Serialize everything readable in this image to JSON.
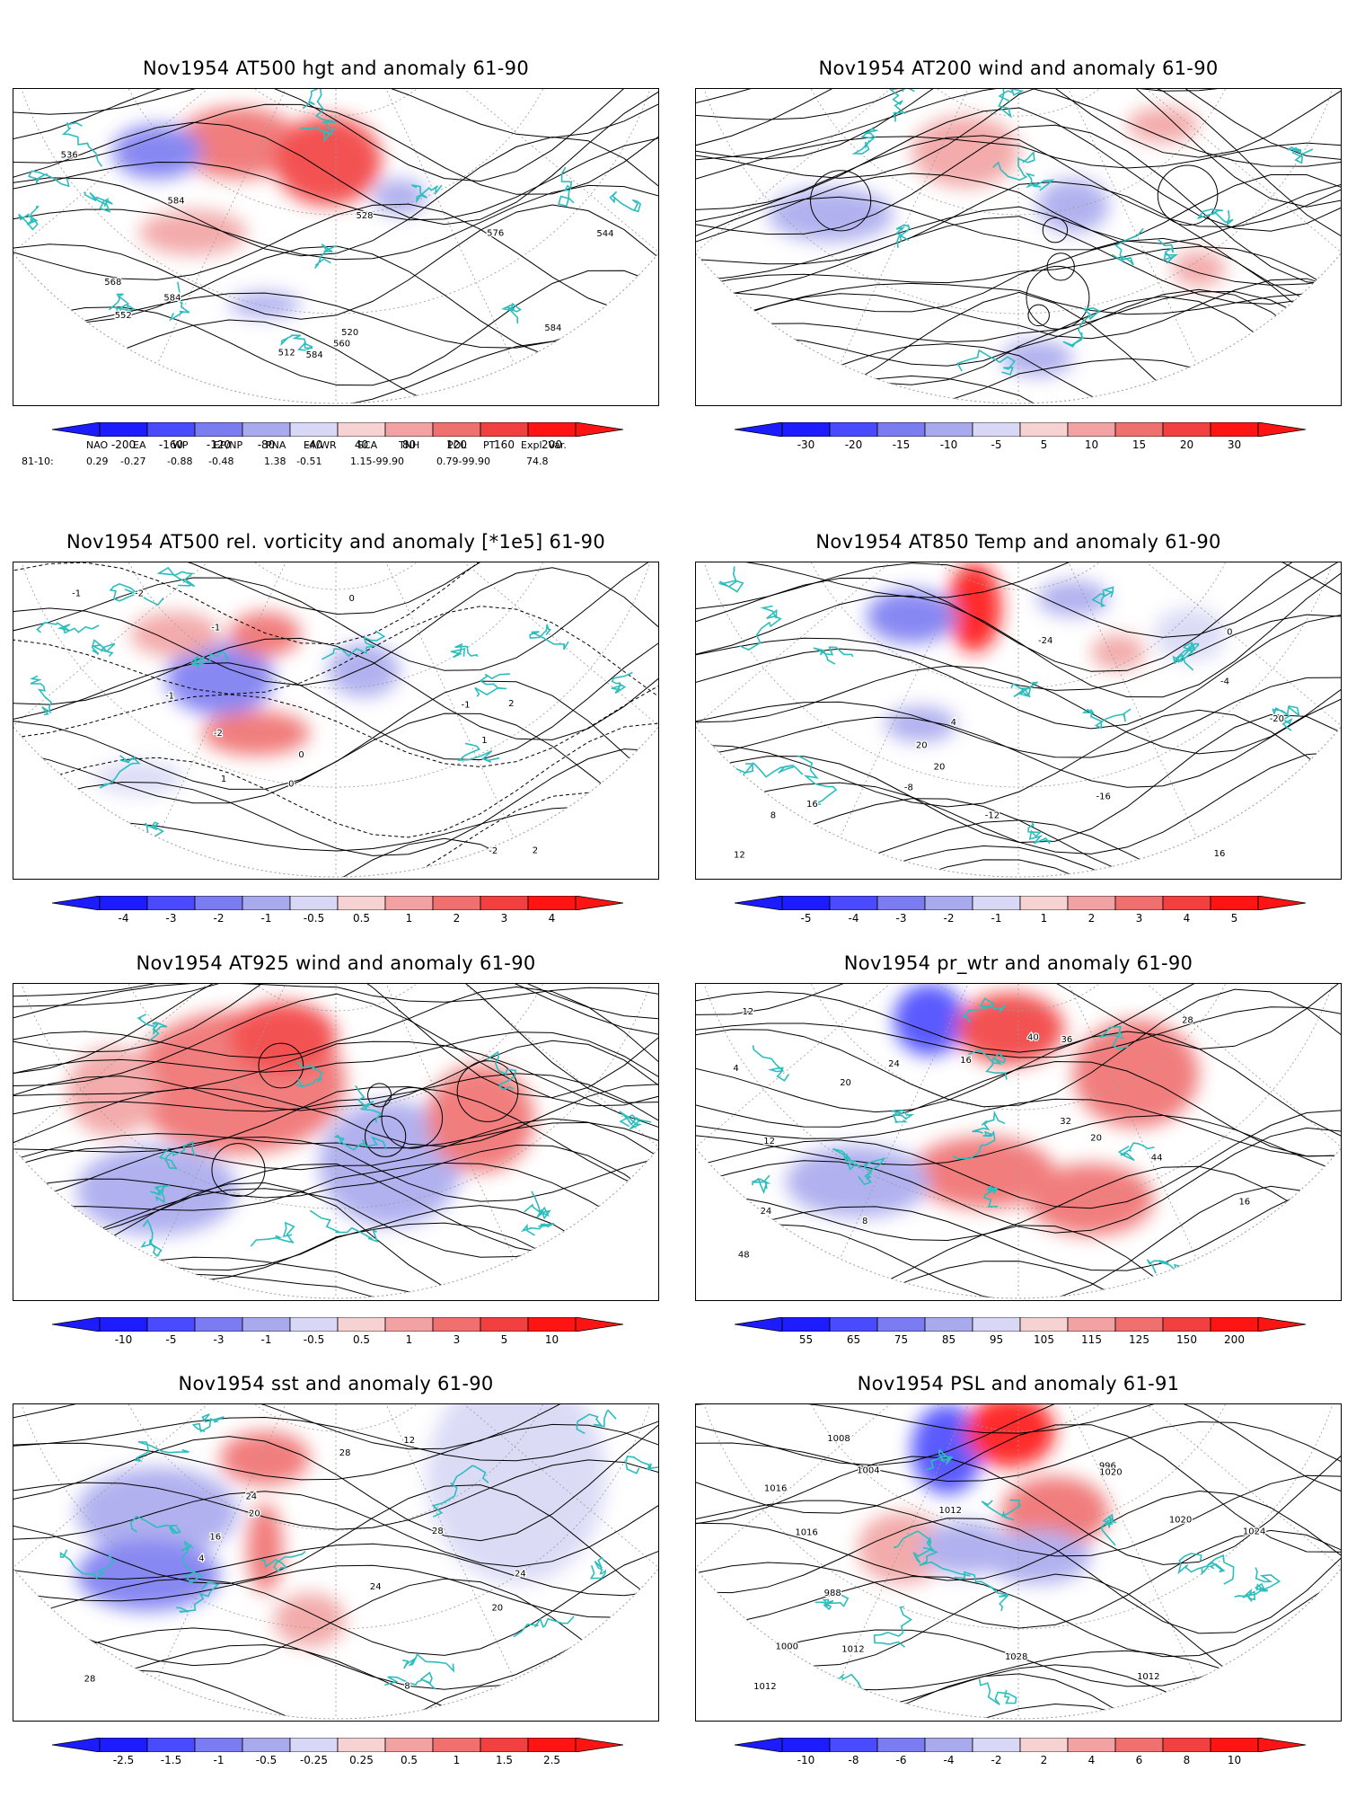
{
  "panels": [
    {
      "title": "Nov1954 AT500 hgt and anomaly 61-90",
      "ticks": [
        "-200",
        "-160",
        "-120",
        "-80",
        "-40",
        "40",
        "80",
        "120",
        "160",
        "200"
      ],
      "labels": [
        "512",
        "520",
        "528",
        "536",
        "544",
        "552",
        "560",
        "568",
        "576",
        "584",
        "584",
        "584",
        "584"
      ],
      "kind": "hgt"
    },
    {
      "title": "Nov1954 AT200 wind and anomaly 61-90",
      "ticks": [
        "-30",
        "-20",
        "-15",
        "-10",
        "-5",
        "5",
        "10",
        "15",
        "20",
        "30"
      ],
      "labels": [],
      "kind": "wind"
    },
    {
      "title": "Nov1954 AT500 rel. vorticity and anomaly [*1e5] 61-90",
      "ticks": [
        "-4",
        "-3",
        "-2",
        "-1",
        "-0.5",
        "0.5",
        "1",
        "2",
        "3",
        "4"
      ],
      "labels": [
        "0",
        "-1",
        "-2",
        "1",
        "2",
        "-1",
        "0",
        "-2",
        "1",
        "-1",
        "2",
        "0",
        "-1",
        "-2"
      ],
      "kind": "vort"
    },
    {
      "title": "Nov1954 AT850 Temp and anomaly 61-90",
      "ticks": [
        "-5",
        "-4",
        "-3",
        "-2",
        "-1",
        "1",
        "2",
        "3",
        "4",
        "5"
      ],
      "labels": [
        "-20",
        "-24",
        "-12",
        "-16",
        "-8",
        "-4",
        "0",
        "4",
        "8",
        "12",
        "16",
        "20",
        "20",
        "16"
      ],
      "kind": "temp"
    },
    {
      "title": "Nov1954 AT925 wind and anomaly 61-90",
      "ticks": [
        "-10",
        "-5",
        "-3",
        "-1",
        "-0.5",
        "0.5",
        "1",
        "3",
        "5",
        "10"
      ],
      "labels": [],
      "kind": "wind"
    },
    {
      "title": "Nov1954 pr_wtr and anomaly 61-90",
      "ticks": [
        "55",
        "65",
        "75",
        "85",
        "95",
        "105",
        "115",
        "125",
        "150",
        "200"
      ],
      "labels": [
        "4",
        "8",
        "12",
        "16",
        "20",
        "24",
        "28",
        "32",
        "36",
        "40",
        "44",
        "48",
        "16",
        "12",
        "20",
        "24"
      ],
      "kind": "prw"
    },
    {
      "title": "Nov1954 sst and anomaly 61-90",
      "ticks": [
        "-2.5",
        "-1.5",
        "-1",
        "-0.5",
        "-0.25",
        "0.25",
        "0.5",
        "1",
        "1.5",
        "2.5"
      ],
      "labels": [
        "28",
        "24",
        "20",
        "16",
        "12",
        "8",
        "4",
        "28",
        "24",
        "20",
        "28",
        "24"
      ],
      "kind": "sst"
    },
    {
      "title": "Nov1954 PSL and anomaly 61-91",
      "ticks": [
        "-10",
        "-8",
        "-6",
        "-4",
        "-2",
        "2",
        "4",
        "6",
        "8",
        "10"
      ],
      "labels": [
        "1012",
        "1024",
        "996",
        "988",
        "1000",
        "1004",
        "1012",
        "1020",
        "1016",
        "1016",
        "1012",
        "1020",
        "1028",
        "1008",
        "1012"
      ],
      "kind": "psl"
    }
  ],
  "indices": {
    "header": [
      "NAO",
      "EA",
      "WP",
      "EP/NP",
      "PNA",
      "EA/WR",
      "SCA",
      "TNH",
      "POL",
      "PT",
      "Expl. Var."
    ],
    "row_label": "81-10:",
    "values": [
      "0.29",
      "-0.27",
      "-0.88",
      "-0.48",
      "1.38",
      "-0.51",
      "1.15-99.90",
      "0.79-99.90",
      "74.8"
    ]
  },
  "colors": {
    "coast": "#2ebdbd",
    "contour": "#000000",
    "grid": "#9a9a9a",
    "scale": [
      "#1c1cff",
      "#4a4aff",
      "#7b7bf2",
      "#a9a9ee",
      "#d8d8f6",
      "#ffffff",
      "#f6d2d2",
      "#f2a2a2",
      "#f07070",
      "#f24040",
      "#ff1414"
    ]
  }
}
